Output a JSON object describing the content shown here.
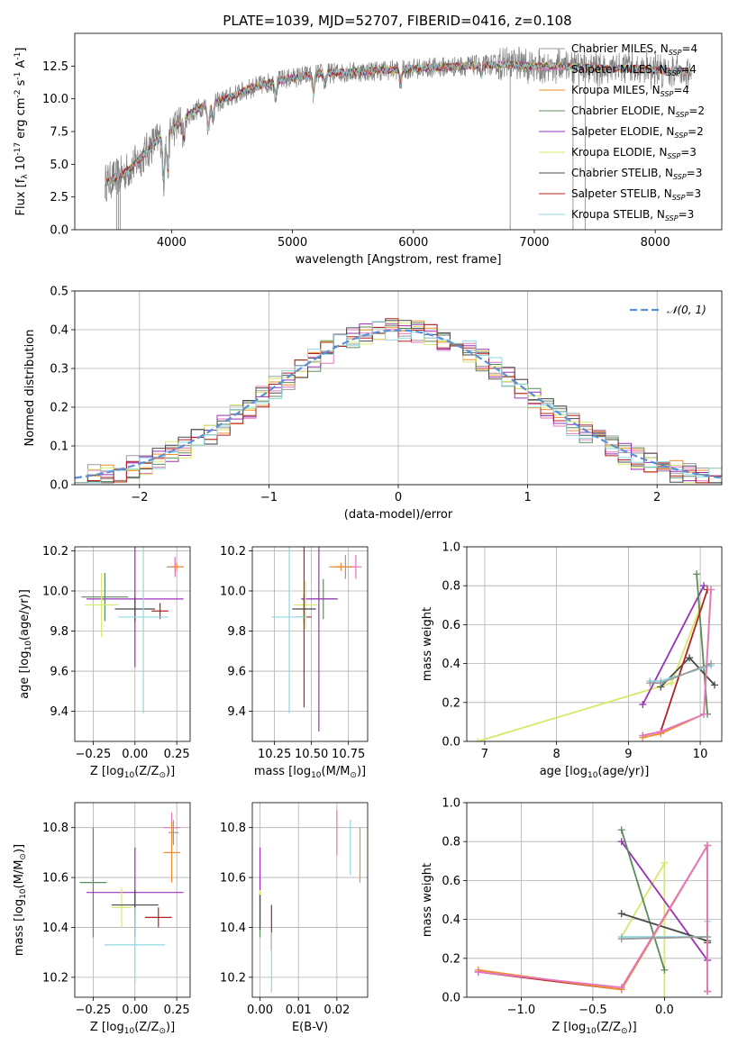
{
  "figure": {
    "title": "PLATE=1039, MJD=52707, FIBERID=0416, z=0.108"
  },
  "models": [
    {
      "name": "Chabrier MILES, N$_{SSP}$=4",
      "base": "Chabrier MILES, N",
      "nssp": "4",
      "color": "#9a9a9a"
    },
    {
      "name": "Salpeter MILES, N$_{SSP}$=4",
      "base": "Salpeter MILES, N",
      "nssp": "4",
      "color": "#e377c2"
    },
    {
      "name": "Kroupa MILES, N$_{SSP}$=4",
      "base": "Kroupa MILES, N",
      "nssp": "4",
      "color": "#f28e2b"
    },
    {
      "name": "Chabrier ELODIE, N$_{SSP}$=2",
      "base": "Chabrier ELODIE, N",
      "nssp": "2",
      "color": "#5b8c5a"
    },
    {
      "name": "Salpeter ELODIE, N$_{SSP}$=2",
      "base": "Salpeter ELODIE, N",
      "nssp": "2",
      "color": "#9b30b8"
    },
    {
      "name": "Kroupa ELODIE, N$_{SSP}$=3",
      "base": "Kroupa ELODIE, N",
      "nssp": "3",
      "color": "#d7e86a"
    },
    {
      "name": "Chabrier STELIB, N$_{SSP}$=3",
      "base": "Chabrier STELIB, N",
      "nssp": "3",
      "color": "#4a4a4a"
    },
    {
      "name": "Salpeter STELIB, N$_{SSP}$=3",
      "base": "Salpeter STELIB, N",
      "nssp": "3",
      "color": "#b22222"
    },
    {
      "name": "Kroupa STELIB, N$_{SSP}$=3",
      "base": "Kroupa STELIB, N",
      "nssp": "3",
      "color": "#8fd8e0"
    }
  ],
  "chart_data": [
    {
      "id": "spectrum",
      "type": "line",
      "title": "PLATE=1039, MJD=52707, FIBERID=0416, z=0.108",
      "xlabel": "wavelength [Angstrom, rest frame]",
      "ylabel": "Flux [f$_\\lambda$ 10$^{-17}$ erg cm$^{-2}$ s$^{-1}$ A$^{-1}$]",
      "xlim": [
        3200,
        8550
      ],
      "ylim": [
        0,
        15
      ],
      "xticks": [
        4000,
        5000,
        6000,
        7000,
        8000
      ],
      "yticks": [
        0.0,
        2.5,
        5.0,
        7.5,
        10.0,
        12.5
      ],
      "data_series": {
        "name": "data",
        "color": "#808080"
      },
      "continuum_x": [
        3450,
        3550,
        3650,
        3750,
        3850,
        3950,
        4050,
        4150,
        4250,
        4350,
        4500,
        4650,
        4800,
        5000,
        5200,
        5400,
        5600,
        5800,
        6000,
        6200,
        6400,
        6600,
        6800,
        7000,
        7200,
        7400,
        7600,
        7800,
        8000,
        8200,
        8300
      ],
      "continuum_y": [
        3.6,
        4.0,
        4.6,
        5.5,
        6.6,
        7.3,
        8.0,
        8.8,
        9.4,
        9.6,
        10.2,
        10.8,
        11.2,
        11.6,
        11.9,
        12.0,
        12.1,
        12.2,
        12.3,
        12.4,
        12.5,
        12.6,
        12.6,
        12.5,
        12.5,
        12.4,
        12.3,
        12.3,
        12.2,
        12.1,
        12.0
      ],
      "absorption_lines": [
        {
          "x": 3934,
          "depth": 3.5
        },
        {
          "x": 3969,
          "depth": 3.0
        },
        {
          "x": 4102,
          "depth": 1.5
        },
        {
          "x": 4304,
          "depth": 1.8
        },
        {
          "x": 4341,
          "depth": 1.2
        },
        {
          "x": 4861,
          "depth": 1.0
        },
        {
          "x": 5175,
          "depth": 1.5
        },
        {
          "x": 5270,
          "depth": 0.8
        },
        {
          "x": 5893,
          "depth": 1.2
        },
        {
          "x": 6563,
          "depth": 0.8
        }
      ],
      "spikes": [
        {
          "x": 3545,
          "low": 0.0
        },
        {
          "x": 3560,
          "low": 0.0
        },
        {
          "x": 3575,
          "low": 0.0
        },
        {
          "x": 6800,
          "low": 0.0
        },
        {
          "x": 7320,
          "low": 0.0
        },
        {
          "x": 7420,
          "low": 0.0
        }
      ]
    },
    {
      "id": "residuals",
      "type": "histogram",
      "xlabel": "(data-model)/error",
      "ylabel": "Normed distribution",
      "xlim": [
        -2.5,
        2.5
      ],
      "ylim": [
        0,
        0.5
      ],
      "xticks": [
        -2,
        -1,
        0,
        1,
        2
      ],
      "yticks": [
        0.0,
        0.1,
        0.2,
        0.3,
        0.4,
        0.5
      ],
      "bin_width": 0.1,
      "bin_start": -2.5,
      "reference": {
        "label": "$\\mathcal{N}(0,1)$",
        "text": "𝒩(0, 1)",
        "color": "#5b8fd6",
        "mu": 0,
        "sigma": 1
      },
      "approx_hist_amplitude": 0.4,
      "approx_hist_sigma": 0.98
    },
    {
      "id": "age_vs_Z",
      "type": "errorbar",
      "xlabel": "Z [log$_{10}$(Z/Z$_\\odot$)]",
      "ylabel": "age  [log$_{10}$(age/yr)]",
      "xlim": [
        -0.36,
        0.33
      ],
      "ylim": [
        9.25,
        10.22
      ],
      "xticks": [
        -0.25,
        0.0,
        0.25
      ],
      "yticks": [
        9.4,
        9.6,
        9.8,
        10.0,
        10.2
      ],
      "points": [
        {
          "model": 0,
          "x": 0.24,
          "y": 10.12,
          "xerr": 0.05,
          "yerr": 0.03
        },
        {
          "model": 1,
          "x": 0.24,
          "y": 10.12,
          "xerr": 0.03,
          "yerr": 0.05
        },
        {
          "model": 2,
          "x": 0.25,
          "y": 10.12,
          "xerr": 0.04,
          "yerr": 0.02
        },
        {
          "model": 3,
          "x": -0.18,
          "y": 9.97,
          "xerr": 0.14,
          "yerr": 0.12
        },
        {
          "model": 4,
          "x": 0.0,
          "y": 9.96,
          "xerr": 0.29,
          "yerr": 0.34
        },
        {
          "model": 5,
          "x": -0.2,
          "y": 9.93,
          "xerr": 0.1,
          "yerr": 0.16
        },
        {
          "model": 6,
          "x": 0.0,
          "y": 9.91,
          "xerr": 0.12,
          "yerr": 0.06
        },
        {
          "model": 7,
          "x": 0.15,
          "y": 9.9,
          "xerr": 0.05,
          "yerr": 0.04
        },
        {
          "model": 8,
          "x": 0.05,
          "y": 9.87,
          "xerr": 0.15,
          "yerr": 0.48
        }
      ]
    },
    {
      "id": "age_vs_mass",
      "type": "errorbar",
      "xlabel": "mass [log$_{10}$(M/M$_\\odot$)]",
      "ylabel": "",
      "xlim": [
        10.1,
        10.88
      ],
      "ylim": [
        9.25,
        10.22
      ],
      "xticks": [
        10.25,
        10.5,
        10.75
      ],
      "yticks": [
        9.4,
        9.6,
        9.8,
        10.0,
        10.2
      ],
      "points": [
        {
          "model": 0,
          "x": 10.73,
          "y": 10.12,
          "xerr": 0.07,
          "yerr": 0.06
        },
        {
          "model": 1,
          "x": 10.8,
          "y": 10.12,
          "xerr": 0.04,
          "yerr": 0.06
        },
        {
          "model": 2,
          "x": 10.7,
          "y": 10.12,
          "xerr": 0.08,
          "yerr": 0.02
        },
        {
          "model": 3,
          "x": 10.58,
          "y": 9.96,
          "xerr": 0.1,
          "yerr": 0.1
        },
        {
          "model": 4,
          "x": 10.55,
          "y": 9.96,
          "xerr": 0.12,
          "yerr": 0.66
        },
        {
          "model": 5,
          "x": 10.46,
          "y": 9.93,
          "xerr": 0.08,
          "yerr": 0.12
        },
        {
          "model": 6,
          "x": 10.45,
          "y": 9.91,
          "xerr": 0.08,
          "yerr": 0.07
        },
        {
          "model": 7,
          "x": 10.45,
          "y": 9.87,
          "xerr": 0.05,
          "yerr": 0.45
        },
        {
          "model": 8,
          "x": 10.35,
          "y": 9.87,
          "xerr": 0.12,
          "yerr": 0.48
        }
      ]
    },
    {
      "id": "mass_weight_vs_age",
      "type": "line",
      "xlabel": "age  [log$_{10}$(age/yr)]",
      "ylabel": "mass weight",
      "xlim": [
        6.75,
        10.3
      ],
      "ylim": [
        0.0,
        1.0
      ],
      "xticks": [
        7,
        8,
        9,
        10
      ],
      "yticks": [
        0.0,
        0.2,
        0.4,
        0.6,
        0.8,
        1.0
      ],
      "series": [
        {
          "model": 5,
          "x": [
            6.9,
            9.6,
            10.0
          ],
          "y": [
            0.0,
            0.3,
            0.69
          ]
        },
        {
          "model": 4,
          "x": [
            9.2,
            10.05
          ],
          "y": [
            0.19,
            0.8
          ]
        },
        {
          "model": 3,
          "x": [
            9.95,
            10.1
          ],
          "y": [
            0.86,
            0.14
          ]
        },
        {
          "model": 6,
          "x": [
            9.45,
            9.85,
            10.2
          ],
          "y": [
            0.28,
            0.43,
            0.29
          ]
        },
        {
          "model": 8,
          "x": [
            9.3,
            9.45,
            10.15
          ],
          "y": [
            0.31,
            0.31,
            0.39
          ]
        },
        {
          "model": 7,
          "x": [
            9.2,
            9.45,
            10.1
          ],
          "y": [
            0.03,
            0.05,
            0.78
          ]
        },
        {
          "model": 2,
          "x": [
            9.2,
            9.45,
            10.05,
            10.15
          ],
          "y": [
            0.02,
            0.04,
            0.14,
            0.78
          ]
        },
        {
          "model": 1,
          "x": [
            9.2,
            9.45,
            10.05,
            10.15
          ],
          "y": [
            0.03,
            0.05,
            0.14,
            0.78
          ]
        },
        {
          "model": 0,
          "x": [
            9.3,
            9.45,
            10.15
          ],
          "y": [
            0.3,
            0.3,
            0.4
          ]
        }
      ]
    },
    {
      "id": "mass_vs_Z",
      "type": "errorbar",
      "xlabel": "Z [log$_{10}$(Z/Z$_\\odot$)]",
      "ylabel": "mass [log$_{10}$(M/M$_\\odot$)]",
      "xlim": [
        -0.36,
        0.33
      ],
      "ylim": [
        10.12,
        10.9
      ],
      "xticks": [
        -0.25,
        0.0,
        0.25
      ],
      "yticks": [
        10.2,
        10.4,
        10.6,
        10.8
      ],
      "points": [
        {
          "model": 0,
          "x": 0.23,
          "y": 10.78,
          "xerr": 0.03,
          "yerr": 0.05
        },
        {
          "model": 1,
          "x": 0.22,
          "y": 10.8,
          "xerr": 0.05,
          "yerr": 0.06
        },
        {
          "model": 2,
          "x": 0.22,
          "y": 10.7,
          "xerr": 0.05,
          "yerr": 0.12
        },
        {
          "model": 3,
          "x": -0.25,
          "y": 10.58,
          "xerr": 0.08,
          "yerr": 0.22
        },
        {
          "model": 4,
          "x": 0.0,
          "y": 10.54,
          "xerr": 0.29,
          "yerr": 0.18
        },
        {
          "model": 5,
          "x": -0.08,
          "y": 10.48,
          "xerr": 0.06,
          "yerr": 0.08
        },
        {
          "model": 6,
          "x": 0.0,
          "y": 10.49,
          "xerr": 0.14,
          "yerr": 0.06
        },
        {
          "model": 7,
          "x": 0.14,
          "y": 10.44,
          "xerr": 0.08,
          "yerr": 0.04
        },
        {
          "model": 8,
          "x": 0.0,
          "y": 10.33,
          "xerr": 0.18,
          "yerr": 0.15
        }
      ]
    },
    {
      "id": "mass_vs_EBV",
      "type": "errorbar",
      "xlabel": "E(B-V)",
      "ylabel": "",
      "xlim": [
        -0.002,
        0.028
      ],
      "ylim": [
        10.12,
        10.9
      ],
      "xticks": [
        0.0,
        0.01,
        0.02
      ],
      "xticklabels": [
        "0.00",
        "0.01",
        "0.02"
      ],
      "yticks": [
        10.2,
        10.4,
        10.6,
        10.8
      ],
      "points": [
        {
          "model": 0,
          "x": 0.0,
          "y": 10.55,
          "xerr": 0,
          "yerr": 0.06
        },
        {
          "model": 1,
          "x": 0.02,
          "y": 10.78,
          "xerr": 0,
          "yerr": 0.09
        },
        {
          "model": 2,
          "x": 0.026,
          "y": 10.69,
          "xerr": 0,
          "yerr": 0.11
        },
        {
          "model": 3,
          "x": 0.0,
          "y": 10.45,
          "xerr": 0,
          "yerr": 0.09
        },
        {
          "model": 4,
          "x": 0.0,
          "y": 10.62,
          "xerr": 0,
          "yerr": 0.1
        },
        {
          "model": 5,
          "x": 0.0,
          "y": 10.5,
          "xerr": 0,
          "yerr": 0.05
        },
        {
          "model": 6,
          "x": 0.0,
          "y": 10.46,
          "xerr": 0,
          "yerr": 0.07
        },
        {
          "model": 7,
          "x": 0.003,
          "y": 10.4,
          "xerr": 0,
          "yerr": 0.09
        },
        {
          "model": 8,
          "x": 0.0235,
          "y": 10.72,
          "xerr": 0,
          "yerr": 0.11
        },
        {
          "model": 8,
          "x": 0.003,
          "y": 10.26,
          "xerr": 0,
          "yerr": 0.12
        }
      ]
    },
    {
      "id": "mass_weight_vs_Z",
      "type": "line",
      "xlabel": "Z [log$_{10}$(Z/Z$_\\odot$)]",
      "ylabel": "mass weight",
      "xlim": [
        -1.38,
        0.4
      ],
      "ylim": [
        0.0,
        1.0
      ],
      "xticks": [
        -1.0,
        -0.5,
        0.0
      ],
      "yticks": [
        0.0,
        0.2,
        0.4,
        0.6,
        0.8,
        1.0
      ],
      "series": [
        {
          "model": 5,
          "x": [
            -0.3,
            0.0,
            0.0
          ],
          "y": [
            0.31,
            0.69,
            0.0
          ]
        },
        {
          "model": 4,
          "x": [
            -0.3,
            0.3
          ],
          "y": [
            0.8,
            0.19
          ]
        },
        {
          "model": 3,
          "x": [
            -0.3,
            0.0
          ],
          "y": [
            0.86,
            0.14
          ]
        },
        {
          "model": 6,
          "x": [
            -0.3,
            0.3,
            0.3
          ],
          "y": [
            0.43,
            0.29,
            0.28
          ]
        },
        {
          "model": 8,
          "x": [
            -0.3,
            0.3,
            0.3
          ],
          "y": [
            0.31,
            0.31,
            0.39
          ]
        },
        {
          "model": 7,
          "x": [
            -1.3,
            -0.3,
            0.3,
            0.3
          ],
          "y": [
            0.13,
            0.04,
            0.78,
            0.03
          ]
        },
        {
          "model": 2,
          "x": [
            -1.3,
            -0.3,
            0.3,
            0.3
          ],
          "y": [
            0.14,
            0.04,
            0.78,
            0.03
          ]
        },
        {
          "model": 1,
          "x": [
            -1.3,
            -0.3,
            0.3,
            0.3
          ],
          "y": [
            0.13,
            0.05,
            0.78,
            0.03
          ]
        },
        {
          "model": 0,
          "x": [
            -0.3,
            0.3
          ],
          "y": [
            0.3,
            0.31
          ]
        }
      ]
    }
  ]
}
